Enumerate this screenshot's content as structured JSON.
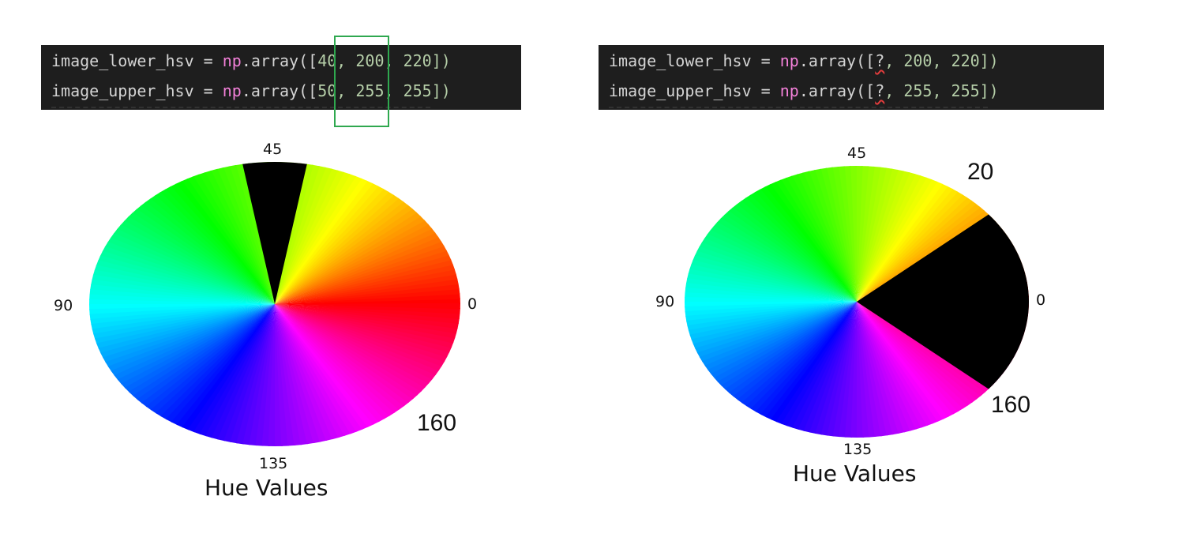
{
  "left_panel": {
    "code": {
      "line1": {
        "var": "image_lower_hsv",
        "op": " = ",
        "mod": "np",
        "fn": ".array",
        "open": "([",
        "hue": "40",
        "rest": ", 200, 220])"
      },
      "line2": {
        "var": "image_upper_hsv",
        "op": " = ",
        "mod": "np",
        "fn": ".array",
        "open": "([",
        "hue": "50",
        "rest": ", 255, 255])"
      }
    },
    "labels": {
      "top": "45",
      "left": "90",
      "right": "0",
      "bottom": "135",
      "lower_right": "160"
    },
    "caption": "Hue Values",
    "mask_range_hue": [
      40,
      50
    ]
  },
  "right_panel": {
    "code": {
      "line1": {
        "var": "image_lower_hsv",
        "op": " = ",
        "mod": "np",
        "fn": ".array",
        "open": "([",
        "hue": "?",
        "rest": ", 200, 220])"
      },
      "line2": {
        "var": "image_upper_hsv",
        "op": " = ",
        "mod": "np",
        "fn": ".array",
        "open": "([",
        "hue": "?",
        "rest": ", 255, 255])"
      }
    },
    "labels": {
      "top": "45",
      "upper_right": "20",
      "left": "90",
      "right": "0",
      "bottom": "135",
      "lower_right": "160"
    },
    "caption": "Hue Values",
    "mask_range_hue": [
      160,
      20
    ]
  },
  "colors": {
    "highlight": "#2fa84f",
    "code_bg": "#1e1e1e",
    "mask": "#000000"
  }
}
